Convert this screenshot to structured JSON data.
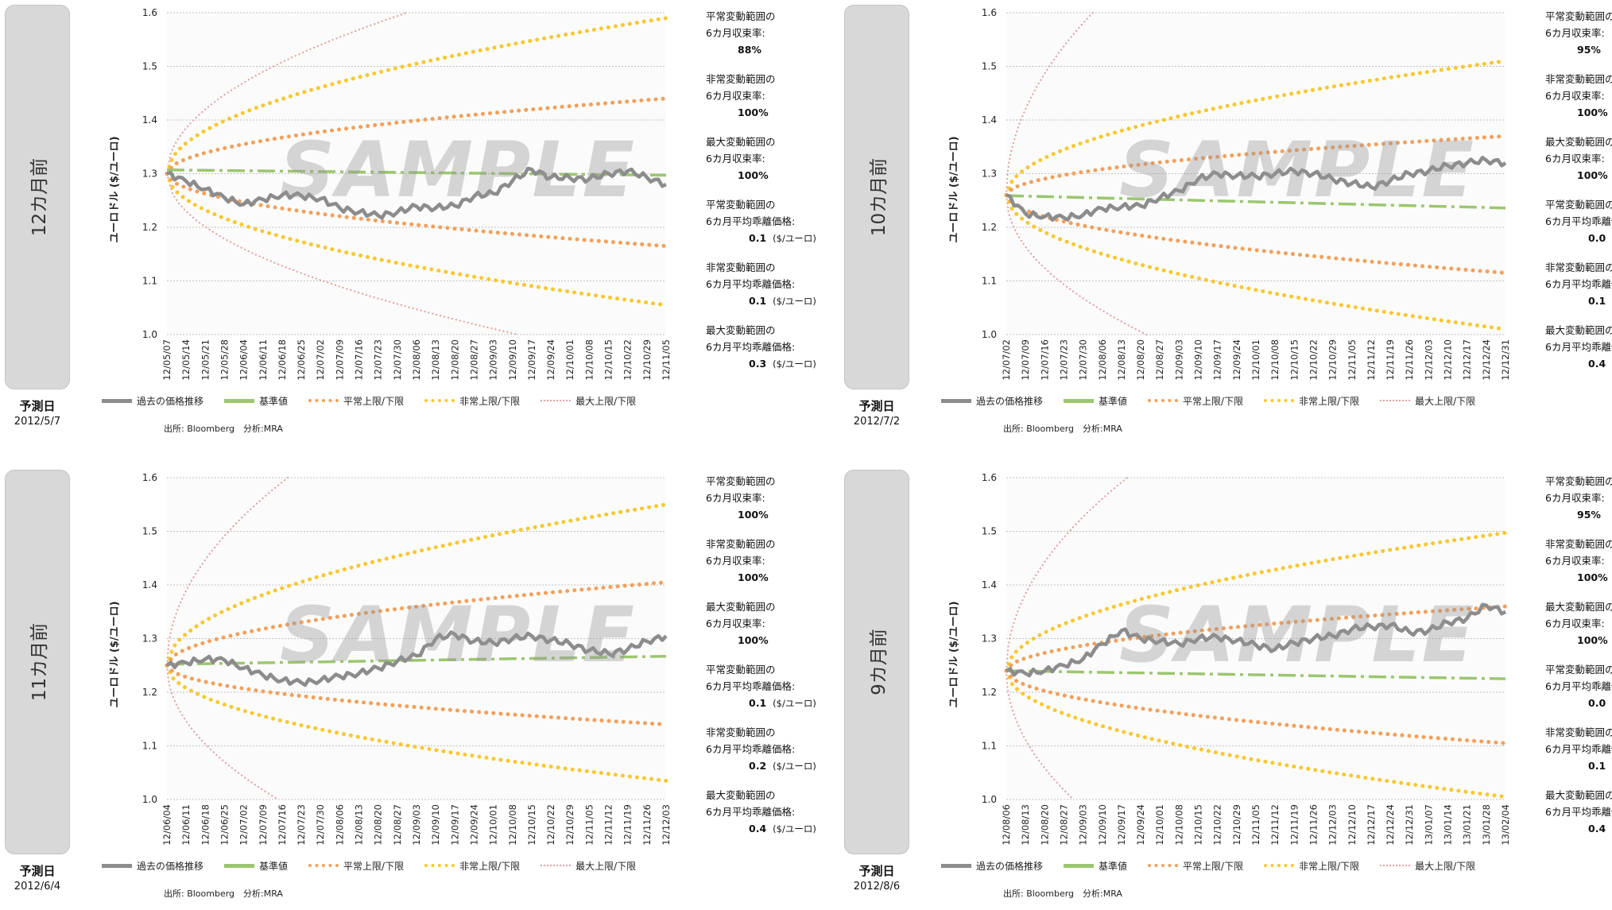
{
  "colors": {
    "history": "#8c8c8c",
    "base": "#9cc66f",
    "normal": "#f2a05c",
    "abnormal": "#f7c830",
    "max": "#e0a0a0",
    "grid": "#bfbfbf",
    "plot_bg": "#fbfbfb"
  },
  "legend": {
    "history": "過去の価格推移",
    "base": "基準値",
    "normal": "平常上限/下限",
    "abnormal": "非常上限/下限",
    "max": "最大上限/下限"
  },
  "source_text": "出所: Bloomberg　分析:MRA",
  "predict_label": "予測日",
  "watermark": "SAMPLE",
  "y_axis_label": "ユーロドル ($/ユーロ)",
  "unit_label": "($/ユーロ)",
  "stat_labels": {
    "normal_rate": [
      "平常変動範囲の",
      "6カ月収束率:"
    ],
    "abnormal_rate": [
      "非常変動範囲の",
      "6カ月収束率:"
    ],
    "max_rate": [
      "最大変動範囲の",
      "6カ月収束率:"
    ],
    "normal_dev": [
      "平常変動範囲の",
      "6カ月平均乖離価格:"
    ],
    "abnormal_dev": [
      "非常変動範囲の",
      "6カ月平均乖離価格:"
    ],
    "max_dev": [
      "最大変動範囲の",
      "6カ月平均乖離価格:"
    ]
  },
  "panels": [
    {
      "side_label": "12カ月前",
      "predict_date": "2012/5/7",
      "stats": {
        "normal_rate": "88%",
        "abnormal_rate": "100%",
        "max_rate": "100%",
        "normal_dev": "0.1",
        "abnormal_dev": "0.1",
        "max_dev": "0.3"
      },
      "chart_data": {
        "type": "line",
        "ylim": [
          1.0,
          1.6
        ],
        "yticks": [
          "1.0",
          "1.1",
          "1.2",
          "1.3",
          "1.4",
          "1.5",
          "1.6"
        ],
        "categories": [
          "12/05/07",
          "12/05/14",
          "12/05/21",
          "12/05/28",
          "12/06/04",
          "12/06/11",
          "12/06/18",
          "12/06/25",
          "12/07/02",
          "12/07/09",
          "12/07/16",
          "12/07/23",
          "12/07/30",
          "12/08/06",
          "12/08/13",
          "12/08/20",
          "12/08/27",
          "12/09/03",
          "12/09/10",
          "12/09/17",
          "12/09/24",
          "12/10/01",
          "12/10/08",
          "12/10/15",
          "12/10/22",
          "12/10/29",
          "12/11/05"
        ],
        "start": 1.3,
        "base": [
          1.307,
          1.297
        ],
        "normal": [
          1.44,
          1.165
        ],
        "abnormal": [
          1.59,
          1.055
        ],
        "max_up_end": 12.5,
        "max_down_end": 18.3,
        "history": [
          1.3,
          1.286,
          1.271,
          1.255,
          1.243,
          1.252,
          1.26,
          1.259,
          1.253,
          1.236,
          1.228,
          1.222,
          1.228,
          1.239,
          1.236,
          1.24,
          1.258,
          1.263,
          1.287,
          1.308,
          1.293,
          1.292,
          1.29,
          1.3,
          1.305,
          1.293,
          1.28
        ]
      }
    },
    {
      "side_label": "10カ月前",
      "predict_date": "2012/7/2",
      "stats": {
        "normal_rate": "95%",
        "abnormal_rate": "100%",
        "max_rate": "100%",
        "normal_dev": "0.0",
        "abnormal_dev": "0.1",
        "max_dev": "0.4"
      },
      "chart_data": {
        "type": "line",
        "ylim": [
          1.0,
          1.6
        ],
        "yticks": [
          "1.0",
          "1.1",
          "1.2",
          "1.3",
          "1.4",
          "1.5",
          "1.6"
        ],
        "categories": [
          "12/07/02",
          "12/07/09",
          "12/07/16",
          "12/07/23",
          "12/07/30",
          "12/08/06",
          "12/08/13",
          "12/08/20",
          "12/08/27",
          "12/09/03",
          "12/09/10",
          "12/09/17",
          "12/09/24",
          "12/10/01",
          "12/10/08",
          "12/10/15",
          "12/10/22",
          "12/10/29",
          "12/11/05",
          "12/11/12",
          "12/11/19",
          "12/11/26",
          "12/12/03",
          "12/12/10",
          "12/12/17",
          "12/12/24",
          "12/12/31"
        ],
        "start": 1.26,
        "base": [
          1.259,
          1.236
        ],
        "normal": [
          1.37,
          1.115
        ],
        "abnormal": [
          1.51,
          1.01
        ],
        "max_up_end": 4.5,
        "max_down_end": 7.3,
        "history": [
          1.26,
          1.225,
          1.22,
          1.218,
          1.223,
          1.235,
          1.238,
          1.24,
          1.255,
          1.268,
          1.29,
          1.3,
          1.296,
          1.295,
          1.3,
          1.305,
          1.3,
          1.29,
          1.282,
          1.275,
          1.287,
          1.3,
          1.305,
          1.315,
          1.32,
          1.325,
          1.32
        ]
      }
    },
    {
      "side_label": "11カ月前",
      "predict_date": "2012/6/4",
      "stats": {
        "normal_rate": "100%",
        "abnormal_rate": "100%",
        "max_rate": "100%",
        "normal_dev": "0.1",
        "abnormal_dev": "0.2",
        "max_dev": "0.4"
      },
      "chart_data": {
        "type": "line",
        "ylim": [
          1.0,
          1.6
        ],
        "yticks": [
          "1.0",
          "1.1",
          "1.2",
          "1.3",
          "1.4",
          "1.5",
          "1.6"
        ],
        "categories": [
          "12/06/04",
          "12/06/11",
          "12/06/18",
          "12/06/25",
          "12/07/02",
          "12/07/09",
          "12/07/16",
          "12/07/23",
          "12/07/30",
          "12/08/06",
          "12/08/13",
          "12/08/20",
          "12/08/27",
          "12/09/03",
          "12/09/10",
          "12/09/17",
          "12/09/24",
          "12/10/01",
          "12/10/08",
          "12/10/15",
          "12/10/22",
          "12/10/29",
          "12/11/05",
          "12/11/12",
          "12/11/19",
          "12/11/26",
          "12/12/03"
        ],
        "start": 1.25,
        "base": [
          1.252,
          1.267
        ],
        "normal": [
          1.405,
          1.14
        ],
        "abnormal": [
          1.55,
          1.035
        ],
        "max_up_end": 6.3,
        "max_down_end": 5.8,
        "history": [
          1.25,
          1.255,
          1.262,
          1.26,
          1.245,
          1.232,
          1.222,
          1.218,
          1.222,
          1.23,
          1.235,
          1.245,
          1.258,
          1.268,
          1.3,
          1.308,
          1.295,
          1.292,
          1.3,
          1.305,
          1.297,
          1.29,
          1.278,
          1.272,
          1.28,
          1.295,
          1.305
        ]
      }
    },
    {
      "side_label": "9カ月前",
      "predict_date": "2012/8/6",
      "stats": {
        "normal_rate": "95%",
        "abnormal_rate": "100%",
        "max_rate": "100%",
        "normal_dev": "0.0",
        "abnormal_dev": "0.1",
        "max_dev": "0.4"
      },
      "chart_data": {
        "type": "line",
        "ylim": [
          1.0,
          1.6
        ],
        "yticks": [
          "1.0",
          "1.1",
          "1.2",
          "1.3",
          "1.4",
          "1.5",
          "1.6"
        ],
        "categories": [
          "12/08/06",
          "12/08/13",
          "12/08/20",
          "12/08/27",
          "12/09/03",
          "12/09/10",
          "12/09/17",
          "12/09/24",
          "12/10/01",
          "12/10/08",
          "12/10/15",
          "12/10/22",
          "12/10/29",
          "12/11/05",
          "12/11/12",
          "12/11/19",
          "12/11/26",
          "12/12/03",
          "12/12/10",
          "12/12/17",
          "12/12/24",
          "12/12/31",
          "13/01/07",
          "13/01/14",
          "13/01/21",
          "13/01/28",
          "13/02/04"
        ],
        "start": 1.24,
        "base": [
          1.24,
          1.225
        ],
        "normal": [
          1.36,
          1.105
        ],
        "abnormal": [
          1.497,
          1.005
        ],
        "max_up_end": 6.3,
        "max_down_end": 3.5,
        "history": [
          1.24,
          1.235,
          1.24,
          1.25,
          1.262,
          1.29,
          1.315,
          1.3,
          1.295,
          1.29,
          1.3,
          1.303,
          1.296,
          1.288,
          1.28,
          1.292,
          1.3,
          1.305,
          1.318,
          1.322,
          1.325,
          1.312,
          1.315,
          1.33,
          1.338,
          1.362,
          1.35
        ]
      }
    }
  ]
}
